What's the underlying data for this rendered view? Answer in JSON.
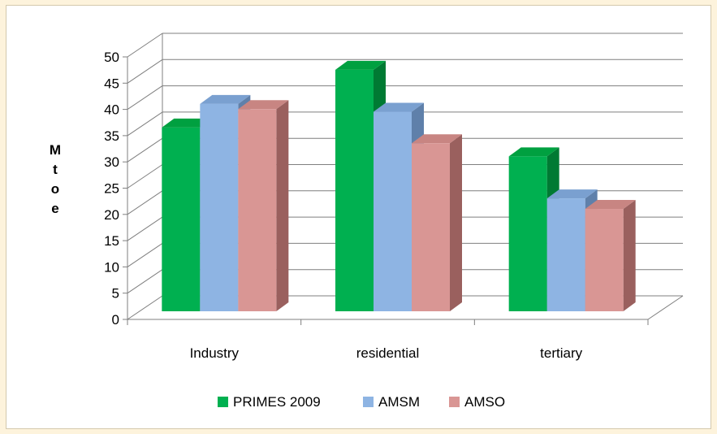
{
  "chart_data": {
    "type": "bar",
    "categories": [
      "Industry",
      "residential",
      "tertiary"
    ],
    "series": [
      {
        "name": "PRIMES 2009",
        "values": [
          35,
          46,
          29.5
        ],
        "color": "#00b050",
        "top": "#00a040",
        "side": "#007a33"
      },
      {
        "name": "AMSM",
        "values": [
          39.5,
          38,
          21.5
        ],
        "color": "#8eb4e3",
        "top": "#7aa0d0",
        "side": "#5f80aa"
      },
      {
        "name": "AMSO",
        "values": [
          38.5,
          32,
          19.5
        ],
        "color": "#d99694",
        "top": "#c88582",
        "side": "#9a605e"
      }
    ],
    "ylabel": "Mtoe",
    "ylabel_letters": [
      "M",
      "t",
      "o",
      "e"
    ],
    "ylim": [
      0,
      50
    ],
    "yticks": [
      "0",
      "5",
      "10",
      "15",
      "20",
      "25",
      "30",
      "35",
      "40",
      "45",
      "50"
    ],
    "grid": true,
    "legend_position": "bottom",
    "style": "3d-clustered-column"
  }
}
